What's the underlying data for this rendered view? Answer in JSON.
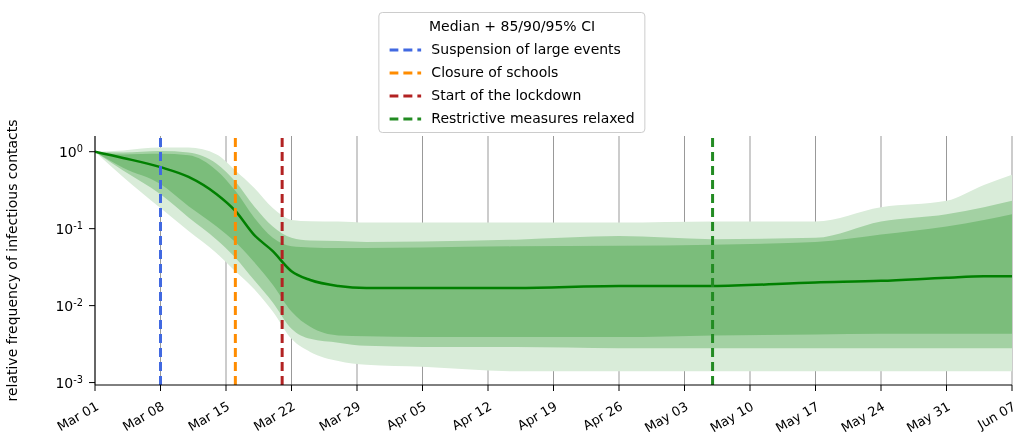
{
  "chart_data": {
    "type": "line",
    "ylabel": "relative frequency of infectious contacts",
    "legend_title": "Median + 85/90/95% CI",
    "legend": "top",
    "grid": "x",
    "log": "y",
    "marker": "none",
    "x": [
      "--03-01",
      "--03-04",
      "--03-08",
      "--03-11",
      "--03-14",
      "--03-16",
      "--03-18",
      "--03-20",
      "--03-22",
      "--03-24",
      "--03-27",
      "--03-30",
      "--04-05",
      "--04-15",
      "--04-26",
      "--05-06",
      "--05-17",
      "--05-24",
      "--05-31",
      "--06-04",
      "--06-07"
    ],
    "xlim": [
      "--03-01",
      "--06-07"
    ],
    "xticks": [
      {
        "value": "--03-01",
        "label": "Mar 01"
      },
      {
        "value": "--03-08",
        "label": "Mar 08"
      },
      {
        "value": "--03-15",
        "label": "Mar 15"
      },
      {
        "value": "--03-22",
        "label": "Mar 22"
      },
      {
        "value": "--03-29",
        "label": "Mar 29"
      },
      {
        "value": "--04-05",
        "label": "Apr 05"
      },
      {
        "value": "--04-12",
        "label": "Apr 12"
      },
      {
        "value": "--04-19",
        "label": "Apr 19"
      },
      {
        "value": "--04-26",
        "label": "Apr 26"
      },
      {
        "value": "--05-03",
        "label": "May 03"
      },
      {
        "value": "--05-10",
        "label": "May 10"
      },
      {
        "value": "--05-17",
        "label": "May 17"
      },
      {
        "value": "--05-24",
        "label": "May 24"
      },
      {
        "value": "--05-31",
        "label": "May 31"
      },
      {
        "value": "--06-07",
        "label": "Jun 07"
      }
    ],
    "ylim": [
      0.00093,
      1.6
    ],
    "yticks": [
      {
        "value": 0.001,
        "label": "10$^{-3}$"
      },
      {
        "value": 0.01,
        "label": "10$^{-2}$"
      },
      {
        "value": 0.1,
        "label": "10$^{-1}$"
      },
      {
        "value": 1,
        "label": "10$^{0}$"
      }
    ],
    "series": [
      {
        "type": "area",
        "color": "#d9ecd9",
        "values": [
          null,
          null,
          null,
          null,
          null,
          null,
          null,
          null,
          null,
          null,
          null,
          null,
          null,
          null,
          null,
          null,
          null,
          null,
          null,
          null,
          null
        ],
        "lower": [
          1,
          0.47,
          0.185,
          0.093,
          0.048,
          0.028,
          0.0165,
          0.0084,
          0.0037,
          0.0025,
          0.0019,
          0.0017,
          0.0016,
          0.0014,
          0.0014,
          0.0014,
          0.0014,
          0.0014,
          0.0014,
          0.0014,
          0.0014
        ],
        "upper": [
          1,
          1.04,
          1.13,
          1.13,
          0.92,
          0.57,
          0.34,
          0.185,
          0.13,
          0.125,
          0.124,
          0.12,
          0.12,
          0.12,
          0.12,
          0.124,
          0.124,
          0.19,
          0.23,
          0.37,
          0.5
        ]
      },
      {
        "type": "area",
        "color": "#a3d1a3",
        "values": [
          null,
          null,
          null,
          null,
          null,
          null,
          null,
          null,
          null,
          null,
          null,
          null,
          null,
          null,
          null,
          null,
          null,
          null,
          null,
          null,
          null
        ],
        "lower": [
          1,
          0.57,
          0.28,
          0.14,
          0.072,
          0.042,
          0.0215,
          0.011,
          0.005,
          0.0037,
          0.0033,
          0.003,
          0.0029,
          0.0029,
          0.0028,
          0.0028,
          0.0028,
          0.0028,
          0.0028,
          0.0028,
          0.0028
        ],
        "upper": [
          1,
          0.98,
          1.02,
          0.98,
          0.7,
          0.41,
          0.196,
          0.107,
          0.076,
          0.07,
          0.069,
          0.067,
          0.068,
          0.072,
          0.08,
          0.073,
          0.076,
          0.124,
          0.154,
          0.19,
          0.23
        ]
      },
      {
        "type": "area",
        "color": "#7bbd7b",
        "values": [
          null,
          null,
          null,
          null,
          null,
          null,
          null,
          null,
          null,
          null,
          null,
          null,
          null,
          null,
          null,
          null,
          null,
          null,
          null,
          null,
          null
        ],
        "lower": [
          1,
          0.62,
          0.38,
          0.196,
          0.107,
          0.067,
          0.037,
          0.0187,
          0.0084,
          0.0053,
          0.0041,
          0.004,
          0.0039,
          0.0039,
          0.0039,
          0.0041,
          0.0042,
          0.0043,
          0.0043,
          0.0043,
          0.0043
        ],
        "upper": [
          1,
          0.92,
          0.94,
          0.9,
          0.57,
          0.31,
          0.14,
          0.076,
          0.059,
          0.057,
          0.056,
          0.056,
          0.057,
          0.059,
          0.06,
          0.062,
          0.067,
          0.084,
          0.107,
          0.13,
          0.154
        ]
      },
      {
        "color": "#008000",
        "values": [
          1,
          0.83,
          0.63,
          0.47,
          0.28,
          0.17,
          0.083,
          0.051,
          0.028,
          0.0215,
          0.018,
          0.017,
          0.017,
          0.017,
          0.018,
          0.018,
          0.02,
          0.021,
          0.023,
          0.024,
          0.024
        ]
      }
    ],
    "ref_lines": [
      {
        "axis": "x",
        "value": "--03-08",
        "label": "Suspension of large events",
        "color": "#4169e1",
        "line_style": "dashed"
      },
      {
        "axis": "x",
        "value": "--03-16",
        "label": "Closure of schools",
        "color": "#ff8c00",
        "line_style": "dashed"
      },
      {
        "axis": "x",
        "value": "--03-21",
        "label": "Start of the lockdown",
        "color": "#b22222",
        "line_style": "dashed"
      },
      {
        "axis": "x",
        "value": "--05-06",
        "label": "Restrictive measures relaxed",
        "color": "#228b22",
        "line_style": "dashed"
      }
    ]
  }
}
